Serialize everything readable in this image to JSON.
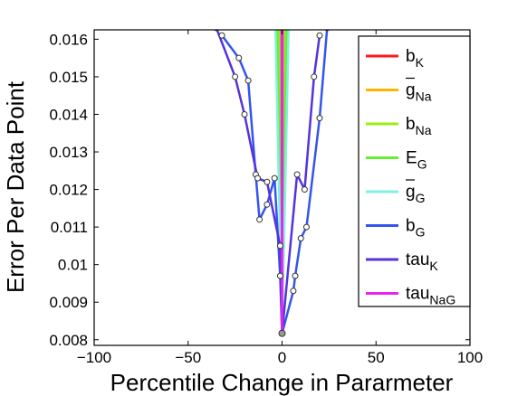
{
  "chart_data": {
    "type": "line",
    "xlabel": "Percentile Change in Pararmeter",
    "ylabel": "Error Per Data Point",
    "xlim": [
      -100,
      100
    ],
    "ylim": [
      0.00785,
      0.01625
    ],
    "xticks": [
      {
        "value": -100,
        "label": "−100"
      },
      {
        "value": -50,
        "label": "−50"
      },
      {
        "value": 0,
        "label": "0"
      },
      {
        "value": 50,
        "label": "50"
      },
      {
        "value": 100,
        "label": "100"
      }
    ],
    "yticks": [
      {
        "value": 0.008,
        "label": "0.008"
      },
      {
        "value": 0.009,
        "label": "0.009"
      },
      {
        "value": 0.01,
        "label": "0.01"
      },
      {
        "value": 0.011,
        "label": "0.011"
      },
      {
        "value": 0.012,
        "label": "0.012"
      },
      {
        "value": 0.013,
        "label": "0.013"
      },
      {
        "value": 0.014,
        "label": "0.014"
      },
      {
        "value": 0.015,
        "label": "0.015"
      },
      {
        "value": 0.016,
        "label": "0.016"
      }
    ],
    "grid": false,
    "legend_position": "top-right",
    "minimum": {
      "x": 0,
      "y": 0.00817
    },
    "series": [
      {
        "name": "b",
        "sub": "K",
        "bar": false,
        "color": "#ff1a1a",
        "x": [
          -0.5,
          0,
          0.5
        ],
        "y": [
          0.0163,
          0.00817,
          0.0163
        ]
      },
      {
        "name": "g",
        "sub": "Na",
        "bar": true,
        "color": "#ffb300",
        "x": [
          -0.8,
          0,
          0.8
        ],
        "y": [
          0.0163,
          0.00817,
          0.0163
        ]
      },
      {
        "name": "b",
        "sub": "Na",
        "bar": false,
        "color": "#99ee11",
        "x": [
          -1.5,
          0,
          1.5
        ],
        "y": [
          0.0163,
          0.00817,
          0.0163
        ]
      },
      {
        "name": "E",
        "sub": "G",
        "bar": false,
        "color": "#66ee33",
        "x": [
          -2.5,
          0,
          2.5
        ],
        "y": [
          0.0163,
          0.00817,
          0.0163
        ]
      },
      {
        "name": "g",
        "sub": "G",
        "bar": true,
        "color": "#80f0e0",
        "x": [
          -3.5,
          0,
          3.5
        ],
        "y": [
          0.0163,
          0.00817,
          0.0163
        ]
      },
      {
        "name": "b",
        "sub": "G",
        "bar": false,
        "color": "#3355ee",
        "markers": true,
        "x": [
          -32,
          -23,
          -18,
          -14,
          -12,
          -8,
          -4,
          -1,
          0,
          6,
          7,
          10,
          13,
          20,
          24
        ],
        "y": [
          0.0161,
          0.0155,
          0.0149,
          0.0124,
          0.0112,
          0.0116,
          0.0123,
          0.0097,
          0.00817,
          0.0093,
          0.0097,
          0.0107,
          0.011,
          0.0139,
          0.0163
        ]
      },
      {
        "name": "tau",
        "sub": "K",
        "bar": false,
        "color": "#5533dd",
        "markers": true,
        "x": [
          -35,
          -25,
          -20,
          -13,
          -8,
          -1,
          0,
          8,
          12,
          17,
          20
        ],
        "y": [
          0.0163,
          0.015,
          0.014,
          0.0123,
          0.0122,
          0.0105,
          0.00817,
          0.0124,
          0.012,
          0.015,
          0.0161
        ]
      },
      {
        "name": "tau",
        "sub": "NaG",
        "bar": false,
        "color": "#ee22ee",
        "x": [
          -0.3,
          0,
          0.3
        ],
        "y": [
          0.0163,
          0.00817,
          0.0163
        ]
      }
    ]
  }
}
